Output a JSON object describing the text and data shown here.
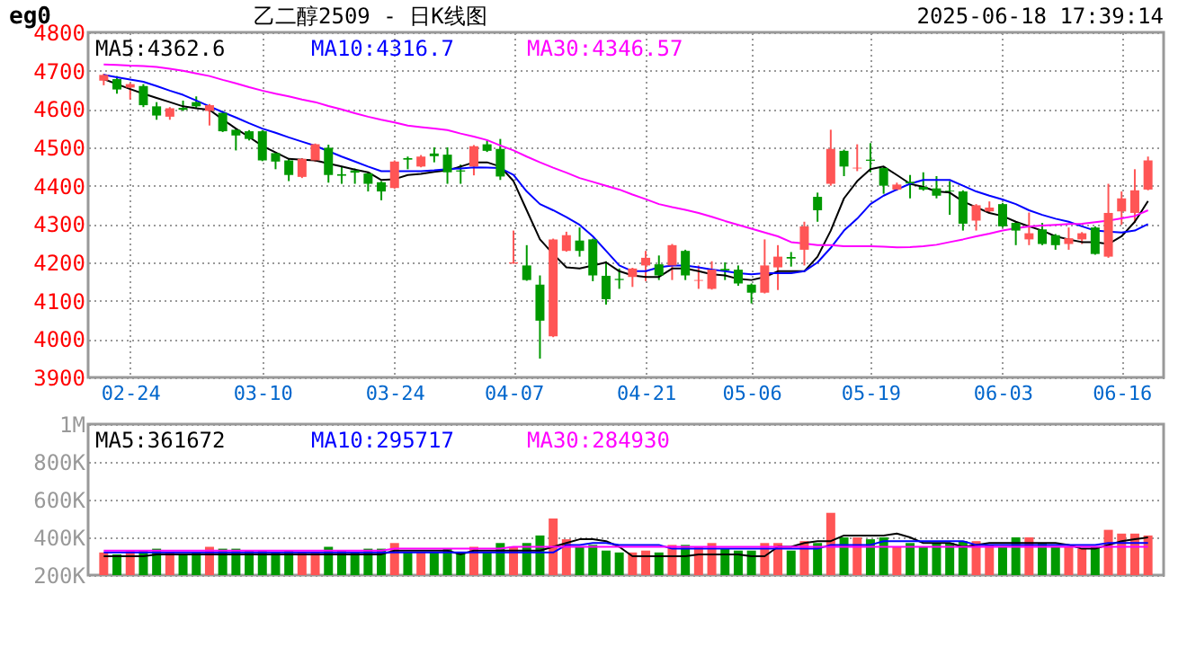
{
  "chart_data": [
    {
      "type": "candlestick",
      "title": "乙二醇2509 - 日K线图",
      "annotations": [
        "eg0",
        "2025-06-18 17:39:14"
      ],
      "categories": [
        null,
        null,
        "02-24",
        null,
        null,
        null,
        null,
        null,
        null,
        null,
        null,
        null,
        "03-10",
        null,
        null,
        null,
        null,
        null,
        null,
        null,
        null,
        null,
        "03-24",
        null,
        null,
        null,
        null,
        null,
        null,
        null,
        null,
        "04-07",
        null,
        null,
        null,
        null,
        null,
        null,
        null,
        null,
        null,
        "04-21",
        null,
        null,
        null,
        null,
        null,
        null,
        null,
        "05-06",
        null,
        null,
        null,
        null,
        null,
        null,
        null,
        null,
        "05-19",
        null,
        null,
        null,
        null,
        null,
        null,
        null,
        null,
        null,
        "06-03",
        null,
        null,
        null,
        null,
        null,
        null,
        null,
        null,
        "06-16",
        null,
        null
      ],
      "ohlc": [
        [
          4674,
          4692,
          4662,
          4689
        ],
        [
          4678,
          4686,
          4640,
          4651
        ],
        [
          4656,
          4668,
          4625,
          4665
        ],
        [
          4660,
          4665,
          4605,
          4610
        ],
        [
          4607,
          4618,
          4572,
          4583
        ],
        [
          4580,
          4605,
          4572,
          4602
        ],
        [
          4603,
          4622,
          4595,
          4598
        ],
        [
          4618,
          4633,
          4602,
          4607
        ],
        [
          4595,
          4613,
          4557,
          4610
        ],
        [
          4590,
          4595,
          4540,
          4542
        ],
        [
          4546,
          4548,
          4492,
          4531
        ],
        [
          4542,
          4545,
          4518,
          4522
        ],
        [
          4542,
          4545,
          4464,
          4466
        ],
        [
          4485,
          4488,
          4443,
          4463
        ],
        [
          4466,
          4470,
          4412,
          4428
        ],
        [
          4423,
          4472,
          4420,
          4470
        ],
        [
          4466,
          4510,
          4462,
          4508
        ],
        [
          4499,
          4507,
          4408,
          4428
        ],
        [
          4430,
          4450,
          4405,
          4426
        ],
        [
          4440,
          4445,
          4405,
          4434
        ],
        [
          4432,
          4436,
          4385,
          4405
        ],
        [
          4409,
          4412,
          4362,
          4385
        ],
        [
          4394,
          4466,
          4392,
          4463
        ],
        [
          4472,
          4476,
          4443,
          4468
        ],
        [
          4450,
          4480,
          4448,
          4476
        ],
        [
          4484,
          4500,
          4461,
          4477
        ],
        [
          4481,
          4500,
          4405,
          4435
        ],
        [
          4440,
          4455,
          4405,
          4437
        ],
        [
          4450,
          4506,
          4427,
          4503
        ],
        [
          4508,
          4518,
          4488,
          4491
        ],
        [
          4496,
          4522,
          4415,
          4424
        ],
        [
          4197,
          4283,
          4197,
          4200
        ],
        [
          4192,
          4245,
          4152,
          4154
        ],
        [
          4142,
          4166,
          3949,
          4048
        ],
        [
          4007,
          4262,
          4005,
          4260
        ],
        [
          4230,
          4280,
          4228,
          4271
        ],
        [
          4257,
          4291,
          4215,
          4230
        ],
        [
          4260,
          4262,
          4151,
          4166
        ],
        [
          4165,
          4203,
          4090,
          4104
        ],
        [
          4157,
          4184,
          4131,
          4154
        ],
        [
          4162,
          4186,
          4136,
          4184
        ],
        [
          4192,
          4230,
          4151,
          4212
        ],
        [
          4195,
          4218,
          4154,
          4166
        ],
        [
          4192,
          4248,
          4154,
          4245
        ],
        [
          4230,
          4233,
          4154,
          4166
        ],
        [
          4152,
          4192,
          4131,
          4154
        ],
        [
          4131,
          4203,
          4129,
          4181
        ],
        [
          4183,
          4200,
          4154,
          4179
        ],
        [
          4181,
          4192,
          4139,
          4145
        ],
        [
          4142,
          4145,
          4093,
          4121
        ],
        [
          4121,
          4260,
          4119,
          4192
        ],
        [
          4187,
          4245,
          4128,
          4215
        ],
        [
          4214,
          4227,
          4189,
          4210
        ],
        [
          4233,
          4306,
          4192,
          4294
        ],
        [
          4371,
          4382,
          4306,
          4336
        ],
        [
          4405,
          4546,
          4400,
          4496
        ],
        [
          4491,
          4494,
          4425,
          4450
        ],
        [
          4445,
          4508,
          4438,
          4447
        ],
        [
          4468,
          4511,
          4435,
          4465
        ],
        [
          4446,
          4450,
          4379,
          4400
        ],
        [
          4390,
          4408,
          4387,
          4403
        ],
        [
          4410,
          4428,
          4367,
          4406
        ],
        [
          4397,
          4435,
          4387,
          4390
        ],
        [
          4393,
          4425,
          4367,
          4374
        ],
        [
          4387,
          4412,
          4324,
          4385
        ],
        [
          4385,
          4388,
          4283,
          4301
        ],
        [
          4309,
          4352,
          4283,
          4349
        ],
        [
          4333,
          4359,
          4330,
          4343
        ],
        [
          4352,
          4355,
          4291,
          4294
        ],
        [
          4303,
          4307,
          4245,
          4283
        ],
        [
          4260,
          4330,
          4245,
          4276
        ],
        [
          4286,
          4303,
          4245,
          4248
        ],
        [
          4271,
          4274,
          4233,
          4245
        ],
        [
          4248,
          4291,
          4233,
          4263
        ],
        [
          4260,
          4279,
          4248,
          4276
        ],
        [
          4291,
          4294,
          4220,
          4222
        ],
        [
          4215,
          4405,
          4212,
          4329
        ],
        [
          4333,
          4385,
          4298,
          4367
        ],
        [
          4329,
          4443,
          4303,
          4388
        ],
        [
          4390,
          4476,
          4388,
          4466
        ]
      ],
      "colors": [
        "#ff5555",
        "#009900",
        "#ff5555",
        "#009900",
        "#009900",
        "#ff5555",
        "#009900",
        "#009900",
        "#ff5555",
        "#009900",
        "#009900",
        "#009900",
        "#009900",
        "#009900",
        "#009900",
        "#ff5555",
        "#ff5555",
        "#009900",
        "#009900",
        "#009900",
        "#009900",
        "#009900",
        "#ff5555",
        "#009900",
        "#ff5555",
        "#009900",
        "#009900",
        "#009900",
        "#ff5555",
        "#009900",
        "#009900",
        "#ff5555",
        "#009900",
        "#009900",
        "#ff5555",
        "#ff5555",
        "#009900",
        "#009900",
        "#009900",
        "#009900",
        "#ff5555",
        "#ff5555",
        "#009900",
        "#ff5555",
        "#009900",
        "#ff5555",
        "#ff5555",
        "#009900",
        "#009900",
        "#009900",
        "#ff5555",
        "#ff5555",
        "#009900",
        "#ff5555",
        "#009900",
        "#ff5555",
        "#009900",
        "#ff5555",
        "#009900",
        "#009900",
        "#ff5555",
        "#009900",
        "#009900",
        "#009900",
        "#009900",
        "#009900",
        "#ff5555",
        "#ff5555",
        "#009900",
        "#009900",
        "#ff5555",
        "#009900",
        "#009900",
        "#ff5555",
        "#ff5555",
        "#009900",
        "#ff5555",
        "#ff5555",
        "#ff5555",
        "#ff5555"
      ],
      "series": [
        {
          "name": "MA5:4362.6",
          "type": "line",
          "color": "#000000",
          "values": [
            4678,
            4665,
            4652,
            4640,
            4629,
            4618,
            4607,
            4602,
            4598,
            4573,
            4549,
            4527,
            4504,
            4487,
            4470,
            4468,
            4466,
            4458,
            4450,
            4442,
            4435,
            4415,
            4417,
            4428,
            4431,
            4436,
            4440,
            4450,
            4461,
            4461,
            4450,
            4412,
            4336,
            4260,
            4222,
            4187,
            4184,
            4192,
            4200,
            4177,
            4166,
            4162,
            4162,
            4184,
            4184,
            4177,
            4169,
            4166,
            4157,
            4154,
            4162,
            4177,
            4177,
            4177,
            4215,
            4283,
            4367,
            4412,
            4443,
            4450,
            4428,
            4405,
            4397,
            4385,
            4382,
            4359,
            4344,
            4329,
            4321,
            4306,
            4294,
            4283,
            4268,
            4260,
            4253,
            4253,
            4248,
            4268,
            4306,
            4360
          ]
        },
        {
          "name": "MA10:4316.7",
          "type": "line",
          "color": "#0000ff",
          "values": [
            4689,
            4683,
            4677,
            4671,
            4660,
            4648,
            4637,
            4622,
            4607,
            4592,
            4578,
            4563,
            4549,
            4538,
            4526,
            4515,
            4504,
            4490,
            4476,
            4463,
            4450,
            4438,
            4438,
            4438,
            4438,
            4440,
            4443,
            4445,
            4448,
            4447,
            4446,
            4428,
            4385,
            4352,
            4336,
            4318,
            4298,
            4268,
            4230,
            4192,
            4177,
            4177,
            4187,
            4192,
            4192,
            4187,
            4181,
            4177,
            4172,
            4169,
            4172,
            4172,
            4172,
            4177,
            4200,
            4238,
            4283,
            4314,
            4352,
            4374,
            4390,
            4405,
            4415,
            4415,
            4415,
            4400,
            4385,
            4374,
            4364,
            4352,
            4336,
            4324,
            4314,
            4306,
            4294,
            4283,
            4280,
            4278,
            4283,
            4300
          ]
        },
        {
          "name": "MA30:4346.57",
          "type": "line",
          "color": "#ff00ff",
          "values": [
            4716,
            4715,
            4713,
            4712,
            4710,
            4705,
            4700,
            4693,
            4686,
            4676,
            4667,
            4657,
            4648,
            4640,
            4633,
            4625,
            4618,
            4608,
            4599,
            4589,
            4580,
            4572,
            4565,
            4557,
            4553,
            4549,
            4545,
            4536,
            4528,
            4519,
            4505,
            4492,
            4476,
            4461,
            4447,
            4434,
            4420,
            4410,
            4400,
            4390,
            4377,
            4365,
            4352,
            4344,
            4337,
            4329,
            4319,
            4308,
            4298,
            4288,
            4278,
            4268,
            4253,
            4249,
            4245,
            4245,
            4242,
            4242,
            4242,
            4241,
            4239,
            4240,
            4242,
            4246,
            4253,
            4260,
            4268,
            4275,
            4283,
            4289,
            4294,
            4296,
            4298,
            4300,
            4301,
            4305,
            4309,
            4315,
            4321,
            4336
          ]
        }
      ],
      "ylim": [
        3900,
        4800
      ],
      "yticks": [
        3900,
        4000,
        4100,
        4200,
        4300,
        4400,
        4500,
        4600,
        4700,
        4800
      ],
      "grid": true,
      "legend": "top left",
      "line_style": "solid",
      "marker": "none"
    },
    {
      "type": "bar",
      "categories": [
        null,
        null,
        null,
        null,
        null,
        null,
        null,
        null,
        null,
        null,
        null,
        null,
        null,
        null,
        null,
        null,
        null,
        null,
        null,
        null,
        null,
        null,
        null,
        null,
        null,
        null,
        null,
        null,
        null,
        null,
        null,
        null,
        null,
        null,
        null,
        null,
        null,
        null,
        null,
        null,
        null,
        null,
        null,
        null,
        null,
        null,
        null,
        null,
        null,
        null,
        null,
        null,
        null,
        null,
        null,
        null,
        null,
        null,
        null,
        null,
        null,
        null,
        null,
        null,
        null,
        null,
        null,
        null,
        null,
        null,
        null,
        null,
        null,
        null,
        null,
        null,
        null,
        null,
        null,
        null
      ],
      "values": [
        320000,
        310000,
        330000,
        330000,
        340000,
        320000,
        310000,
        320000,
        350000,
        340000,
        340000,
        330000,
        330000,
        320000,
        330000,
        320000,
        320000,
        350000,
        330000,
        320000,
        340000,
        340000,
        370000,
        320000,
        320000,
        320000,
        340000,
        320000,
        350000,
        320000,
        370000,
        350000,
        370000,
        410000,
        500000,
        390000,
        350000,
        360000,
        330000,
        320000,
        320000,
        330000,
        320000,
        360000,
        360000,
        350000,
        370000,
        340000,
        330000,
        330000,
        370000,
        370000,
        330000,
        380000,
        370000,
        530000,
        400000,
        400000,
        390000,
        400000,
        350000,
        370000,
        350000,
        370000,
        370000,
        380000,
        380000,
        360000,
        350000,
        400000,
        400000,
        370000,
        350000,
        350000,
        340000,
        350000,
        440000,
        420000,
        420000,
        410000
      ],
      "colors": [
        "#ff5555",
        "#009900",
        "#ff5555",
        "#009900",
        "#009900",
        "#ff5555",
        "#009900",
        "#009900",
        "#ff5555",
        "#009900",
        "#009900",
        "#009900",
        "#009900",
        "#009900",
        "#009900",
        "#ff5555",
        "#ff5555",
        "#009900",
        "#009900",
        "#009900",
        "#009900",
        "#009900",
        "#ff5555",
        "#009900",
        "#ff5555",
        "#009900",
        "#009900",
        "#009900",
        "#ff5555",
        "#009900",
        "#009900",
        "#ff5555",
        "#009900",
        "#009900",
        "#ff5555",
        "#ff5555",
        "#009900",
        "#009900",
        "#009900",
        "#009900",
        "#ff5555",
        "#ff5555",
        "#009900",
        "#ff5555",
        "#009900",
        "#ff5555",
        "#ff5555",
        "#009900",
        "#009900",
        "#009900",
        "#ff5555",
        "#ff5555",
        "#009900",
        "#ff5555",
        "#009900",
        "#ff5555",
        "#009900",
        "#ff5555",
        "#009900",
        "#009900",
        "#ff5555",
        "#009900",
        "#009900",
        "#009900",
        "#009900",
        "#009900",
        "#ff5555",
        "#ff5555",
        "#009900",
        "#009900",
        "#ff5555",
        "#009900",
        "#009900",
        "#ff5555",
        "#ff5555",
        "#009900",
        "#ff5555",
        "#ff5555",
        "#ff5555",
        "#ff5555"
      ],
      "series": [
        {
          "name": "MA5:361672",
          "type": "line",
          "color": "#000000",
          "values": [
            300000,
            300000,
            300000,
            300000,
            310000,
            310000,
            310000,
            310000,
            310000,
            310000,
            310000,
            310000,
            310000,
            310000,
            310000,
            310000,
            310000,
            310000,
            310000,
            310000,
            310000,
            310000,
            330000,
            330000,
            330000,
            330000,
            330000,
            310000,
            330000,
            330000,
            330000,
            330000,
            330000,
            330000,
            350000,
            370000,
            390000,
            390000,
            380000,
            350000,
            300000,
            300000,
            300000,
            300000,
            300000,
            310000,
            310000,
            310000,
            310000,
            300000,
            300000,
            350000,
            350000,
            370000,
            380000,
            380000,
            410000,
            410000,
            410000,
            410000,
            420000,
            400000,
            370000,
            370000,
            370000,
            350000,
            360000,
            370000,
            370000,
            370000,
            370000,
            370000,
            370000,
            360000,
            340000,
            340000,
            360000,
            380000,
            390000,
            400000
          ]
        },
        {
          "name": "MA10:295717",
          "type": "line",
          "color": "#0000ff",
          "values": [
            320000,
            320000,
            320000,
            320000,
            320000,
            320000,
            320000,
            320000,
            320000,
            320000,
            320000,
            320000,
            320000,
            320000,
            320000,
            320000,
            320000,
            320000,
            320000,
            320000,
            320000,
            320000,
            320000,
            320000,
            320000,
            320000,
            320000,
            320000,
            320000,
            320000,
            320000,
            320000,
            320000,
            320000,
            320000,
            360000,
            360000,
            370000,
            370000,
            360000,
            360000,
            360000,
            360000,
            340000,
            340000,
            340000,
            340000,
            340000,
            340000,
            340000,
            340000,
            340000,
            340000,
            340000,
            340000,
            360000,
            360000,
            360000,
            360000,
            380000,
            380000,
            380000,
            380000,
            380000,
            380000,
            380000,
            360000,
            360000,
            360000,
            360000,
            360000,
            360000,
            360000,
            360000,
            360000,
            360000,
            370000,
            370000,
            370000,
            370000
          ]
        },
        {
          "name": "MA30:284930",
          "type": "line",
          "color": "#ff00ff",
          "values": [
            330000,
            330000,
            330000,
            330000,
            330000,
            330000,
            330000,
            330000,
            330000,
            330000,
            330000,
            330000,
            330000,
            330000,
            330000,
            330000,
            330000,
            330000,
            330000,
            330000,
            330000,
            330000,
            340000,
            340000,
            340000,
            340000,
            340000,
            340000,
            340000,
            340000,
            340000,
            350000,
            350000,
            350000,
            350000,
            350000,
            350000,
            350000,
            350000,
            350000,
            350000,
            350000,
            350000,
            350000,
            350000,
            350000,
            350000,
            350000,
            350000,
            350000,
            350000,
            350000,
            350000,
            350000,
            350000,
            350000,
            350000,
            350000,
            350000,
            350000,
            350000,
            350000,
            350000,
            350000,
            350000,
            350000,
            350000,
            350000,
            350000,
            350000,
            350000,
            350000,
            350000,
            350000,
            350000,
            350000,
            350000,
            350000,
            350000,
            350000
          ]
        }
      ],
      "ylim": [
        200000,
        1000000
      ],
      "yticks": [
        {
          "value": 200000,
          "label": "200K"
        },
        {
          "value": 400000,
          "label": "400K"
        },
        {
          "value": 600000,
          "label": "600K"
        },
        {
          "value": 800000,
          "label": "800K"
        },
        {
          "value": 1000000,
          "label": "1M"
        }
      ],
      "grid": true,
      "legend": "top left",
      "tick_labels": "y",
      "line_style": "solid",
      "marker": "none"
    }
  ]
}
